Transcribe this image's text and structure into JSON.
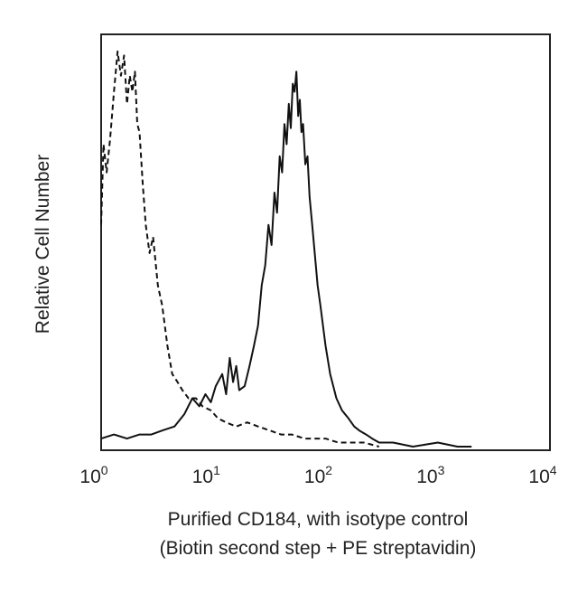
{
  "chart_data": {
    "type": "line",
    "title": "",
    "xlabel_line1": "Purified CD184, with isotype control",
    "xlabel_line2": "(Biotin second step + PE streptavidin)",
    "ylabel": "Relative Cell Number",
    "x_scale": "log",
    "xlim": [
      1,
      10000
    ],
    "ylim": [
      0,
      100
    ],
    "grid": false,
    "legend": "none",
    "x_ticks": [
      {
        "value": 1,
        "base": "10",
        "exp": "0"
      },
      {
        "value": 10,
        "base": "10",
        "exp": "1"
      },
      {
        "value": 100,
        "base": "10",
        "exp": "2"
      },
      {
        "value": 1000,
        "base": "10",
        "exp": "3"
      },
      {
        "value": 10000,
        "base": "10",
        "exp": "4"
      }
    ],
    "series": [
      {
        "style": "dashed",
        "x": [
          1.0,
          1.05,
          1.12,
          1.2,
          1.3,
          1.4,
          1.5,
          1.6,
          1.7,
          1.8,
          1.9,
          2.0,
          2.1,
          2.2,
          2.35,
          2.5,
          2.7,
          2.9,
          3.2,
          3.5,
          3.9,
          4.3,
          4.8,
          5.3,
          6.0,
          7.0,
          8.0,
          9.5,
          11,
          13,
          16,
          20,
          25,
          32,
          40,
          50,
          65,
          80,
          100,
          130,
          170,
          220,
          300
        ],
        "y": [
          55,
          75,
          68,
          76,
          88,
          98,
          92,
          97,
          85,
          92,
          88,
          93,
          80,
          78,
          65,
          55,
          48,
          52,
          40,
          35,
          25,
          18,
          16,
          14,
          12,
          12,
          10,
          9,
          7,
          6,
          5,
          6,
          5,
          4,
          3,
          3,
          2,
          2,
          2,
          1,
          1,
          1,
          0
        ]
      },
      {
        "style": "solid",
        "x": [
          1.0,
          1.3,
          1.7,
          2.2,
          2.8,
          3.5,
          4.5,
          5.5,
          6.5,
          7.5,
          8.5,
          9.5,
          10.5,
          12,
          13,
          14,
          15,
          16,
          17,
          19,
          21,
          23,
          25,
          27,
          29,
          31,
          33,
          35,
          37,
          39,
          41,
          43,
          45,
          47,
          49,
          51,
          53,
          55,
          57,
          59,
          61,
          63,
          66,
          69,
          72,
          76,
          80,
          85,
          90,
          100,
          110,
          125,
          140,
          160,
          180,
          200,
          230,
          260,
          300,
          400,
          600,
          1000,
          1500,
          2000
        ],
        "y": [
          2,
          3,
          2,
          3,
          3,
          4,
          5,
          8,
          12,
          10,
          13,
          11,
          15,
          18,
          13,
          22,
          16,
          20,
          14,
          15,
          20,
          25,
          30,
          40,
          45,
          55,
          50,
          63,
          58,
          72,
          68,
          80,
          75,
          85,
          79,
          90,
          88,
          93,
          82,
          86,
          78,
          80,
          70,
          72,
          62,
          55,
          48,
          40,
          35,
          25,
          18,
          12,
          9,
          7,
          5,
          4,
          3,
          2,
          1,
          1,
          0,
          1,
          0,
          0
        ]
      }
    ]
  }
}
